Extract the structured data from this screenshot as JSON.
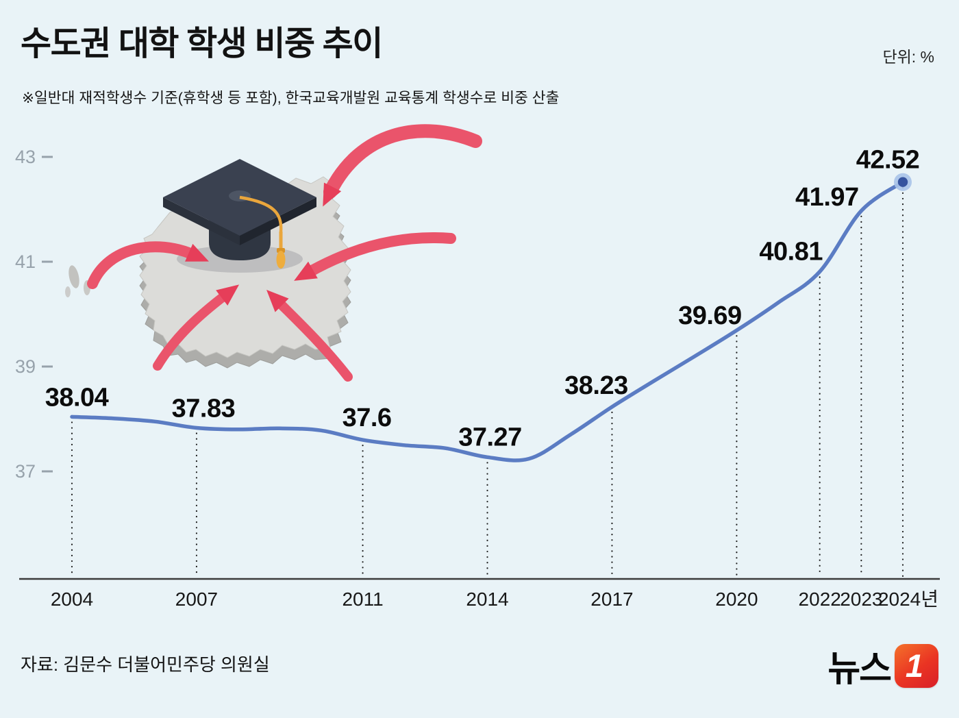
{
  "header": {
    "title": "수도권 대학 학생 비중 추이",
    "unit": "단위: %",
    "note": "※일반대 재적학생수 기준(휴학생 등 포함), 한국교육개발원 교육통계 학생수로 비중 산출"
  },
  "footer": {
    "source": "자료: 김문수 더불어민주당 의원실",
    "logo_text": "뉴스",
    "logo_number": "1"
  },
  "chart_data": {
    "type": "line",
    "title": "수도권 대학 학생 비중 추이",
    "unit_label": "단위: %",
    "x_label_years": [
      2004,
      2007,
      2011,
      2014,
      2017,
      2020,
      2022,
      2023,
      2024
    ],
    "x_tick_labels": [
      "2004",
      "2007",
      "2011",
      "2014",
      "2017",
      "2020",
      "2022",
      "2023",
      "2024년"
    ],
    "labeled_points": [
      {
        "year": 2004,
        "value": 38.04,
        "label": "38.04"
      },
      {
        "year": 2007,
        "value": 37.83,
        "label": "37.83"
      },
      {
        "year": 2011,
        "value": 37.6,
        "label": "37.6"
      },
      {
        "year": 2014,
        "value": 37.27,
        "label": "37.27"
      },
      {
        "year": 2017,
        "value": 38.23,
        "label": "38.23"
      },
      {
        "year": 2020,
        "value": 39.69,
        "label": "39.69"
      },
      {
        "year": 2022,
        "value": 40.81,
        "label": "40.81"
      },
      {
        "year": 2023,
        "value": 41.97,
        "label": "41.97"
      },
      {
        "year": 2024,
        "value": 42.52,
        "label": "42.52"
      }
    ],
    "line_years": [
      2004,
      2005,
      2006,
      2007,
      2008,
      2009,
      2010,
      2011,
      2012,
      2013,
      2014,
      2015,
      2016,
      2017,
      2018,
      2019,
      2020,
      2021,
      2022,
      2023,
      2024
    ],
    "line_values": [
      38.04,
      38.01,
      37.95,
      37.83,
      37.8,
      37.82,
      37.78,
      37.6,
      37.5,
      37.44,
      37.27,
      37.24,
      37.7,
      38.23,
      38.72,
      39.2,
      39.69,
      40.22,
      40.81,
      41.97,
      42.52
    ],
    "y_ticks": [
      43,
      41,
      39,
      37
    ],
    "ylim": [
      36.0,
      43.8
    ],
    "legend": "none",
    "grid": "off",
    "line_color": "#5b7cc3",
    "endpoint_color": "#35539e",
    "endpoint_halo_color": "#a9c3e8",
    "background_color": "#e9f3f7"
  }
}
